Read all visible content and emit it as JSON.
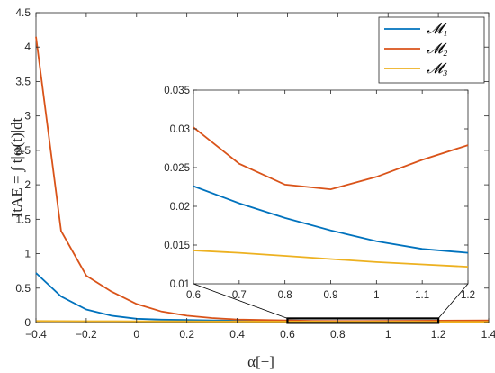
{
  "chart_data": {
    "type": "line",
    "xlabel": "α[−]",
    "ylabel": "ItAE = ∫ t|φ(t)|dt",
    "xlim": [
      -0.4,
      1.4
    ],
    "ylim": [
      0,
      4.5
    ],
    "xticks": [
      "-0.4",
      "-0.2",
      "0",
      "0.2",
      "0.4",
      "0.6",
      "0.8",
      "1",
      "1.2",
      "1.4"
    ],
    "yticks": [
      "0",
      "0.5",
      "1",
      "1.5",
      "2",
      "2.5",
      "3",
      "3.5",
      "4",
      "4.5"
    ],
    "legend_position": "top-right",
    "x": [
      -0.4,
      -0.3,
      -0.2,
      -0.1,
      0.0,
      0.1,
      0.2,
      0.3,
      0.4,
      0.5,
      0.6,
      0.7,
      0.8,
      0.9,
      1.0,
      1.1,
      1.2,
      1.3,
      1.4
    ],
    "series": [
      {
        "name": "𝓜₁",
        "color": "#0072BD",
        "values": [
          0.72,
          0.38,
          0.19,
          0.1,
          0.055,
          0.042,
          0.036,
          0.031,
          0.027,
          0.025,
          0.0226,
          0.0204,
          0.0185,
          0.0169,
          0.0155,
          0.0145,
          0.014,
          0.0135,
          0.013
        ]
      },
      {
        "name": "𝓜₂",
        "color": "#D95319",
        "values": [
          4.15,
          1.33,
          0.68,
          0.45,
          0.27,
          0.16,
          0.1,
          0.065,
          0.045,
          0.036,
          0.0302,
          0.0255,
          0.0228,
          0.0222,
          0.0238,
          0.026,
          0.0279,
          0.029,
          0.03
        ]
      },
      {
        "name": "𝓜₃",
        "color": "#EDB120",
        "values": [
          0.022,
          0.021,
          0.02,
          0.019,
          0.018,
          0.0175,
          0.017,
          0.0163,
          0.0155,
          0.0148,
          0.0143,
          0.014,
          0.0136,
          0.0132,
          0.0128,
          0.0125,
          0.0122,
          0.0118,
          0.0115
        ]
      }
    ],
    "inset": {
      "xlim": [
        0.6,
        1.2
      ],
      "ylim": [
        0.01,
        0.035
      ],
      "xticks": [
        "0.6",
        "0.7",
        "0.8",
        "0.9",
        "1",
        "1.1",
        "1.2"
      ],
      "yticks": [
        "0.01",
        "0.015",
        "0.02",
        "0.025",
        "0.03",
        "0.035"
      ]
    }
  }
}
